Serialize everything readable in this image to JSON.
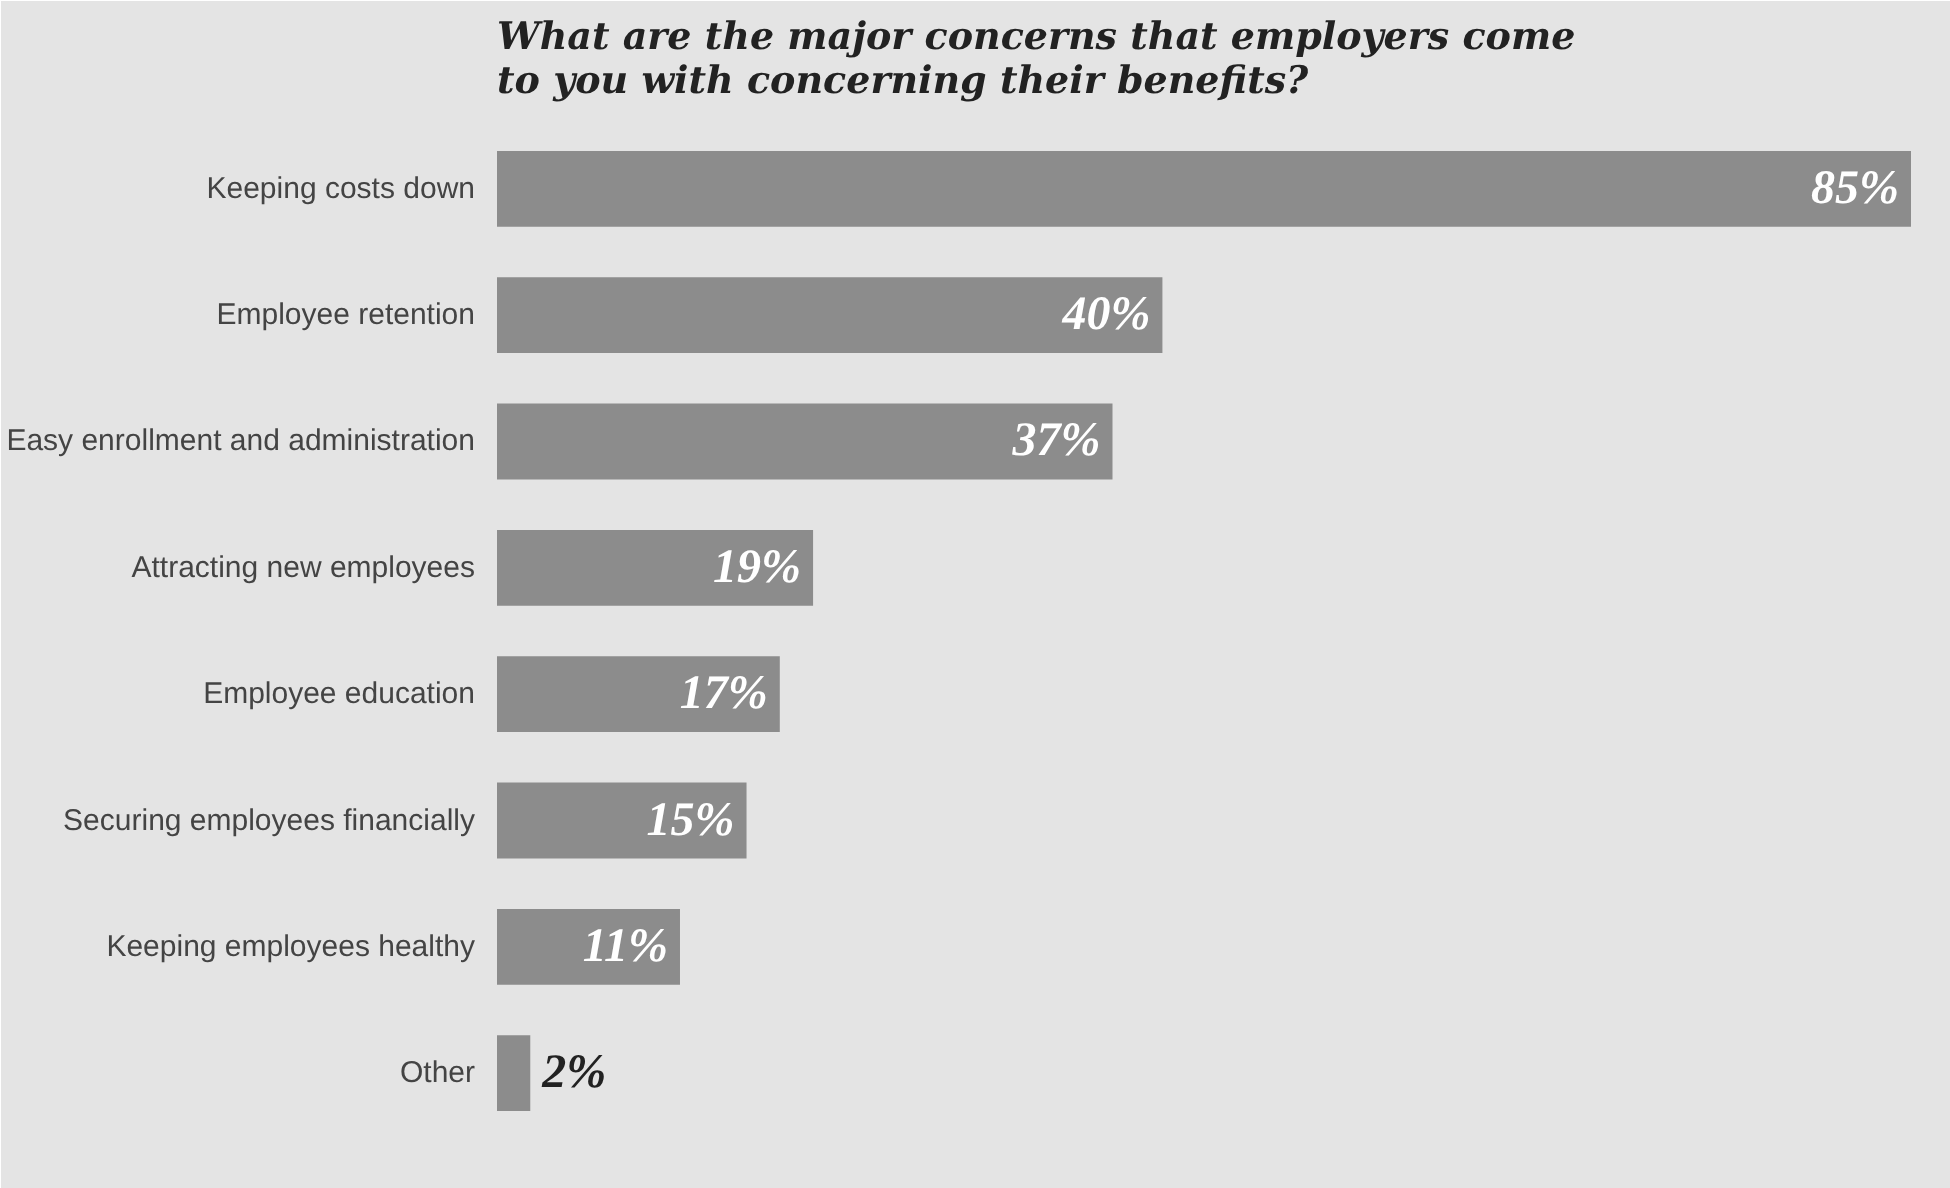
{
  "chart_data": {
    "type": "bar",
    "orientation": "horizontal",
    "title": "What are the major concerns that employers come to you with concerning their benefits?",
    "categories": [
      "Keeping costs down",
      "Employee retention",
      "Easy enrollment and administration",
      "Attracting new employees",
      "Employee education",
      "Securing employees financially",
      "Keeping employees healthy",
      "Other"
    ],
    "values": [
      85,
      40,
      37,
      19,
      17,
      15,
      11,
      2
    ],
    "value_labels": [
      "85%",
      "40%",
      "37%",
      "19%",
      "17%",
      "15%",
      "11%",
      "2%"
    ],
    "color": "#8c8c8c"
  }
}
